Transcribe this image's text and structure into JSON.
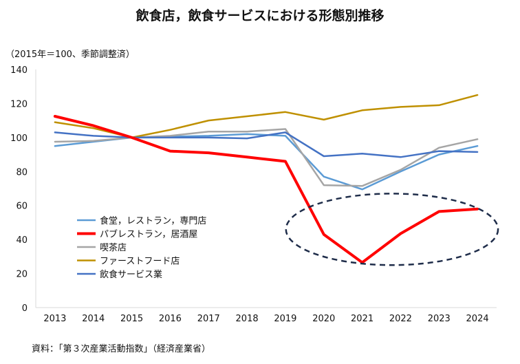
{
  "chart_data": {
    "type": "line",
    "title": "飲食店，飲食サービスにおける形態別推移",
    "unit_note": "（2015年＝100、季節調整済）",
    "source": "資料：「第３次産業活動指数」（経済産業省）",
    "categories": [
      "2013",
      "2014",
      "2015",
      "2016",
      "2017",
      "2018",
      "2019",
      "2020",
      "2021",
      "2022",
      "2023",
      "2024"
    ],
    "ylim": [
      0,
      140
    ],
    "yticks": [
      "0",
      "20",
      "40",
      "60",
      "80",
      "100",
      "120",
      "140"
    ],
    "grid": false,
    "legend_position": "middle-left",
    "series": [
      {
        "name": "食堂，レストラン，専門店",
        "color": "#5b9bd5",
        "width": 2.5,
        "values": [
          95,
          97.5,
          100,
          100.5,
          101,
          102,
          101,
          77,
          69.5,
          80,
          90,
          95
        ]
      },
      {
        "name": "パブレストラン，居酒屋",
        "color": "#ff0000",
        "width": 4,
        "values": [
          112.5,
          107,
          100,
          92,
          91,
          88.5,
          86,
          43,
          26.5,
          43.5,
          56.5,
          58
        ]
      },
      {
        "name": "喫茶店",
        "color": "#a5a5a5",
        "width": 2.5,
        "values": [
          97.5,
          98,
          100,
          101,
          103.5,
          103.5,
          105,
          72,
          71.5,
          81,
          94,
          99
        ]
      },
      {
        "name": "ファーストフード店",
        "color": "#bf9000",
        "width": 2.5,
        "values": [
          109,
          105.5,
          100,
          104.5,
          110,
          112.5,
          115,
          110.5,
          116,
          118,
          119,
          125
        ]
      },
      {
        "name": "飲食サービス業",
        "color": "#4472c4",
        "width": 2.5,
        "values": [
          103,
          101,
          100,
          100,
          100,
          99.5,
          103,
          89,
          90.5,
          88.5,
          92,
          91.5
        ]
      }
    ],
    "annotations": [
      {
        "type": "dashed-ellipse",
        "color": "#1f2d4a",
        "label": "",
        "x_range": [
          "2020",
          "2024"
        ],
        "y_range": [
          25,
          67
        ]
      }
    ]
  }
}
